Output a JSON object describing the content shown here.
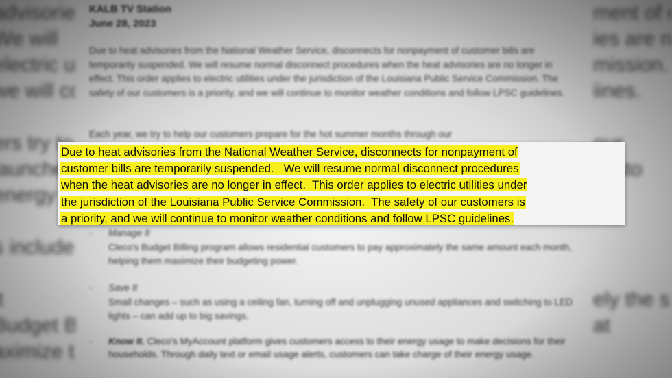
{
  "background_left_fragments": [
    "advisorie",
    "We will",
    "electric utiliti",
    "we will co",
    "",
    "ers try to h",
    "launche",
    "energy a",
    "",
    "s include",
    "",
    "it",
    "Budget Bi",
    "aximize th"
  ],
  "background_right_fragments": [
    "ment of c",
    "ies are no",
    "mission.",
    "iines.",
    "",
    "our",
    "custo",
    "",
    "",
    "",
    "",
    "ely the s",
    "at",
    ""
  ],
  "document": {
    "header_lines": [
      "KALB TV Station",
      "June 28, 2023"
    ],
    "paragraph1": "Due to heat advisories from the National Weather Service, disconnects for nonpayment of customer bills are temporarily suspended.   We will resume normal disconnect procedures when the heat advisories are no longer in effect.  This order applies to electric utilities under the jurisdiction of the Louisiana Public Service Commission.  The safety of our customers is a priority, and we will continue to monitor weather conditions and follow LPSC guidelines.",
    "paragraph2": "Each year, we try to help our customers prepare for the hot summer months through our",
    "bullets": [
      {
        "title": "Manage It",
        "body": "Cleco's Budget Billing program allows residential customers to pay approximately the same amount each month, helping them maximize their budgeting power."
      },
      {
        "title": "Save It",
        "body": "Small changes – such as using a ceiling fan, turning off and unplugging unused appliances and switching to LED lights – can add up to big savings."
      },
      {
        "title": "Know It.",
        "body": "Cleco's MyAccount platform gives customers access to their energy usage to make decisions for their households. Through daily text or email usage alerts, customers can take charge of their energy usage."
      }
    ]
  },
  "callout": {
    "highlight_color": "#f7ef1e",
    "lines": [
      "Due to heat advisories from the National Weather Service, disconnects for nonpayment of",
      "customer bills are temporarily suspended.   We will resume normal disconnect procedures",
      "when the heat advisories are no longer in effect.  This order applies to electric utilities under",
      "the jurisdiction of the Louisiana Public Service Commission.  The safety of our customers is",
      "a priority, and we will continue to monitor weather conditions and follow LPSC guidelines."
    ]
  }
}
